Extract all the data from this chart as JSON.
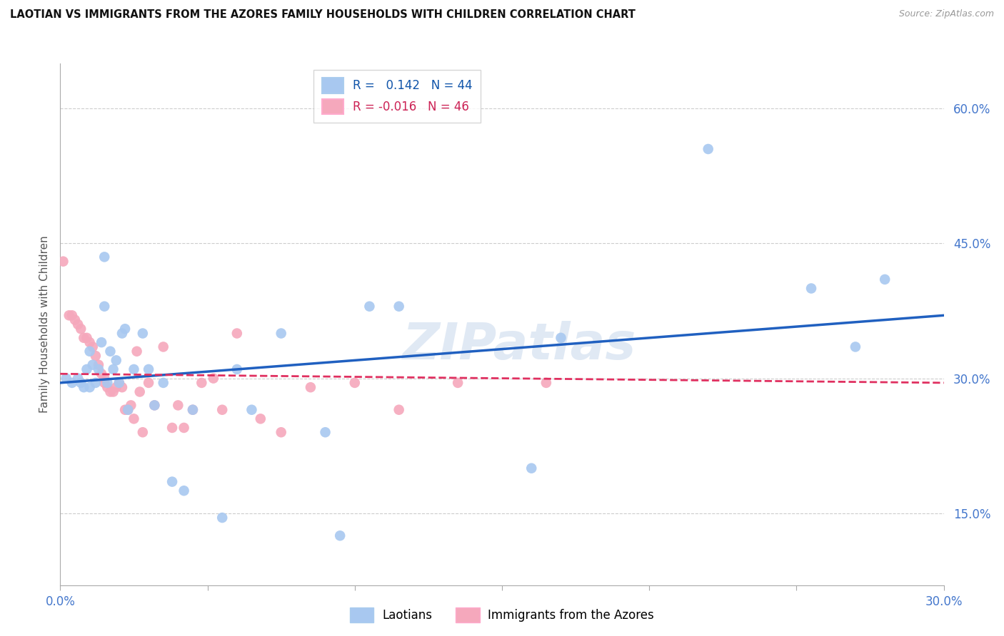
{
  "title": "LAOTIAN VS IMMIGRANTS FROM THE AZORES FAMILY HOUSEHOLDS WITH CHILDREN CORRELATION CHART",
  "source": "Source: ZipAtlas.com",
  "ylabel": "Family Households with Children",
  "xlim": [
    0.0,
    0.3
  ],
  "ylim": [
    0.07,
    0.65
  ],
  "xticks": [
    0.0,
    0.05,
    0.1,
    0.15,
    0.2,
    0.25,
    0.3
  ],
  "xticklabels": [
    "0.0%",
    "",
    "",
    "",
    "",
    "",
    "30.0%"
  ],
  "yticks": [
    0.15,
    0.3,
    0.45,
    0.6
  ],
  "yticklabels": [
    "15.0%",
    "30.0%",
    "45.0%",
    "60.0%"
  ],
  "blue_R": 0.142,
  "blue_N": 44,
  "pink_R": -0.016,
  "pink_N": 46,
  "blue_color": "#A8C8F0",
  "pink_color": "#F5A8BC",
  "trendline_blue": "#2060C0",
  "trendline_pink": "#E03060",
  "blue_scatter_x": [
    0.002,
    0.004,
    0.006,
    0.007,
    0.008,
    0.009,
    0.01,
    0.01,
    0.011,
    0.012,
    0.013,
    0.014,
    0.015,
    0.015,
    0.016,
    0.017,
    0.018,
    0.019,
    0.02,
    0.021,
    0.022,
    0.023,
    0.025,
    0.028,
    0.03,
    0.032,
    0.035,
    0.038,
    0.042,
    0.045,
    0.055,
    0.06,
    0.065,
    0.075,
    0.09,
    0.095,
    0.105,
    0.115,
    0.16,
    0.17,
    0.22,
    0.255,
    0.27,
    0.28
  ],
  "blue_scatter_y": [
    0.3,
    0.295,
    0.3,
    0.295,
    0.29,
    0.31,
    0.29,
    0.33,
    0.315,
    0.295,
    0.31,
    0.34,
    0.38,
    0.435,
    0.295,
    0.33,
    0.31,
    0.32,
    0.295,
    0.35,
    0.355,
    0.265,
    0.31,
    0.35,
    0.31,
    0.27,
    0.295,
    0.185,
    0.175,
    0.265,
    0.145,
    0.31,
    0.265,
    0.35,
    0.24,
    0.125,
    0.38,
    0.38,
    0.2,
    0.345,
    0.555,
    0.4,
    0.335,
    0.41
  ],
  "pink_scatter_x": [
    0.001,
    0.003,
    0.004,
    0.005,
    0.006,
    0.007,
    0.008,
    0.009,
    0.01,
    0.011,
    0.012,
    0.013,
    0.014,
    0.015,
    0.015,
    0.016,
    0.017,
    0.018,
    0.019,
    0.02,
    0.021,
    0.022,
    0.023,
    0.024,
    0.025,
    0.026,
    0.027,
    0.028,
    0.03,
    0.032,
    0.035,
    0.038,
    0.04,
    0.042,
    0.045,
    0.048,
    0.052,
    0.055,
    0.06,
    0.068,
    0.075,
    0.085,
    0.1,
    0.115,
    0.135,
    0.165
  ],
  "pink_scatter_y": [
    0.43,
    0.37,
    0.37,
    0.365,
    0.36,
    0.355,
    0.345,
    0.345,
    0.34,
    0.335,
    0.325,
    0.315,
    0.305,
    0.3,
    0.295,
    0.29,
    0.285,
    0.285,
    0.29,
    0.295,
    0.29,
    0.265,
    0.265,
    0.27,
    0.255,
    0.33,
    0.285,
    0.24,
    0.295,
    0.27,
    0.335,
    0.245,
    0.27,
    0.245,
    0.265,
    0.295,
    0.3,
    0.265,
    0.35,
    0.255,
    0.24,
    0.29,
    0.295,
    0.265,
    0.295,
    0.295
  ],
  "watermark": "ZIPatlas",
  "background_color": "#FFFFFF",
  "grid_color": "#CCCCCC",
  "blue_trend_x0": 0.0,
  "blue_trend_x1": 0.3,
  "blue_trend_y0": 0.295,
  "blue_trend_y1": 0.37,
  "pink_trend_x0": 0.0,
  "pink_trend_x1": 0.3,
  "pink_trend_y0": 0.305,
  "pink_trend_y1": 0.295
}
